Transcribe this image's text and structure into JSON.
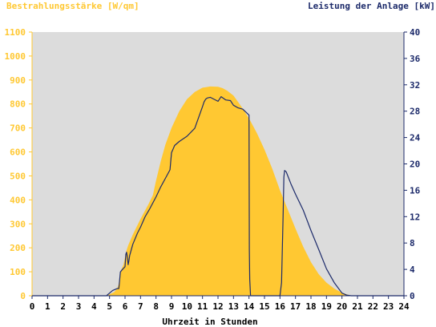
{
  "chart_data": {
    "type": "area",
    "left_axis_title": "Bestrahlungsstärke [W/qm]",
    "right_axis_title": "Leistung der Anlage [kW]",
    "xlabel": "Uhrzeit in Stunden",
    "xlim": [
      0,
      24
    ],
    "xticks": [
      0,
      1,
      2,
      3,
      4,
      5,
      6,
      7,
      8,
      9,
      10,
      11,
      12,
      13,
      14,
      15,
      16,
      17,
      18,
      19,
      20,
      21,
      22,
      23,
      24
    ],
    "left_ylim": [
      0,
      1100
    ],
    "left_yticks": [
      0,
      100,
      200,
      300,
      400,
      500,
      600,
      700,
      800,
      900,
      1000,
      1100
    ],
    "right_ylim": [
      0,
      40
    ],
    "right_yticks": [
      0,
      4,
      8,
      12,
      16,
      20,
      24,
      28,
      32,
      36,
      40
    ],
    "grid": false,
    "colors": {
      "plot_background": "#dcdcdc",
      "irradiance_fill": "#ffc832",
      "power_line": "#1c2a6a",
      "left_axis_text": "#ffc832",
      "right_axis_text": "#1c2a6a",
      "bottom_axis_text": "#000000"
    },
    "series": [
      {
        "name": "Bestrahlungsstärke [W/qm]",
        "axis": "left",
        "style": "area",
        "x": [
          0,
          4.8,
          5.3,
          5.5,
          5.6,
          5.7,
          5.9,
          6.0,
          6.1,
          6.2,
          6.5,
          7.0,
          7.5,
          7.8,
          8.0,
          8.3,
          8.6,
          9.0,
          9.5,
          10.0,
          10.5,
          11.0,
          11.5,
          12.0,
          12.3,
          12.6,
          13.0,
          13.5,
          14.0,
          14.5,
          15.0,
          15.5,
          16.0,
          16.5,
          17.0,
          17.5,
          18.0,
          18.5,
          19.0,
          19.5,
          20.0,
          20.3,
          20.6,
          21.0,
          24
        ],
        "y": [
          0,
          0,
          15,
          30,
          50,
          100,
          130,
          160,
          190,
          210,
          255,
          320,
          380,
          420,
          480,
          560,
          630,
          700,
          770,
          820,
          850,
          868,
          873,
          872,
          866,
          855,
          835,
          790,
          740,
          680,
          610,
          530,
          440,
          360,
          280,
          205,
          140,
          90,
          55,
          30,
          12,
          6,
          0,
          0,
          0
        ]
      },
      {
        "name": "Leistung der Anlage [kW]",
        "axis": "right",
        "style": "line",
        "x": [
          0,
          4.8,
          5.0,
          5.2,
          5.4,
          5.5,
          5.6,
          5.7,
          5.8,
          6.0,
          6.05,
          6.1,
          6.15,
          6.2,
          6.25,
          6.3,
          6.5,
          6.8,
          7.0,
          7.3,
          7.6,
          8.0,
          8.3,
          8.6,
          8.9,
          9.0,
          9.2,
          9.5,
          10.0,
          10.5,
          11.0,
          11.1,
          11.2,
          11.3,
          11.5,
          12.0,
          12.2,
          12.5,
          12.8,
          13.0,
          13.3,
          13.6,
          14.0,
          14.02,
          14.05,
          14.1,
          14.2,
          16.0,
          16.1,
          16.2,
          16.25,
          16.3,
          16.4,
          16.7,
          17.0,
          17.5,
          18.0,
          18.5,
          19.0,
          19.5,
          20.0,
          20.3,
          20.6,
          21.0,
          24
        ],
        "y": [
          0,
          0,
          0.4,
          0.8,
          1.0,
          1.1,
          1.1,
          3.6,
          3.9,
          4.4,
          6.3,
          6.6,
          5.9,
          4.7,
          5.3,
          6.1,
          7.8,
          9.5,
          10.4,
          12.0,
          13.2,
          15.0,
          16.5,
          17.8,
          19.1,
          21.7,
          22.8,
          23.4,
          24.2,
          25.4,
          28.7,
          29.4,
          29.8,
          30.0,
          30.1,
          29.5,
          30.2,
          29.7,
          29.6,
          28.9,
          28.5,
          28.3,
          27.4,
          7.0,
          2.5,
          0,
          0,
          0,
          2.0,
          12.0,
          18.0,
          19.0,
          18.8,
          17.0,
          15.4,
          13.0,
          9.9,
          7.0,
          4.1,
          2.0,
          0.4,
          0.1,
          0,
          0,
          0
        ]
      }
    ]
  }
}
